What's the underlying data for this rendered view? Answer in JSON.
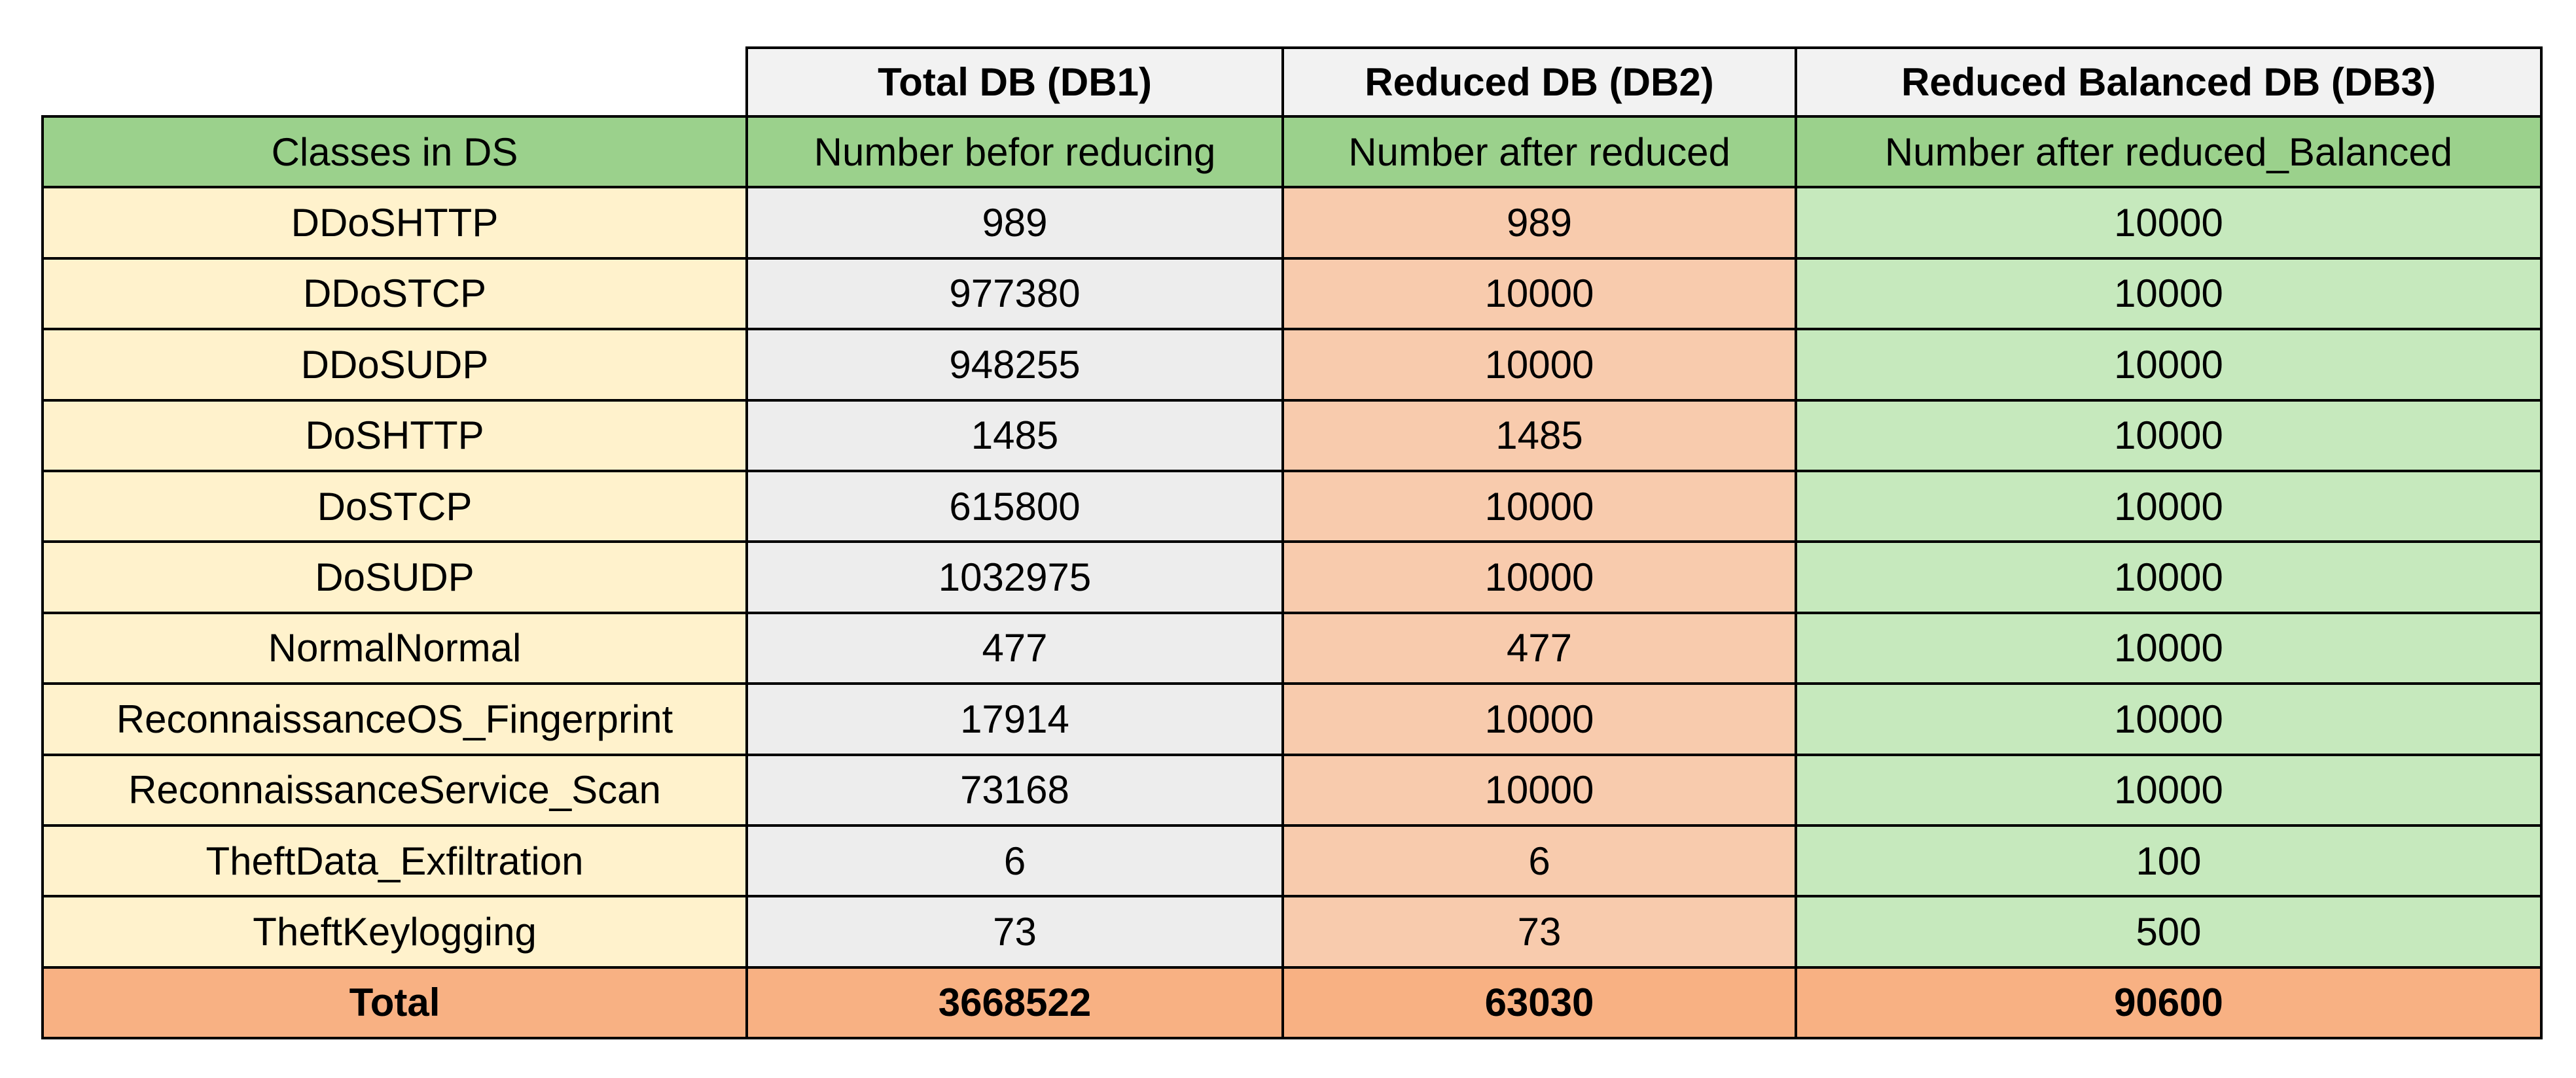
{
  "table": {
    "groups": [
      "Total DB (DB1)",
      "Reduced DB (DB2)",
      "Reduced Balanced DB (DB3)"
    ],
    "header": [
      "Classes in DS",
      "Number befor reducing",
      "Number after reduced",
      "Number after reduced_Balanced"
    ],
    "rows": [
      [
        "DDoSHTTP",
        989,
        989,
        10000
      ],
      [
        "DDoSTCP",
        977380,
        10000,
        10000
      ],
      [
        "DDoSUDP",
        948255,
        10000,
        10000
      ],
      [
        "DoSHTTP",
        1485,
        1485,
        10000
      ],
      [
        "DoSTCP",
        615800,
        10000,
        10000
      ],
      [
        "DoSUDP",
        1032975,
        10000,
        10000
      ],
      [
        "NormalNormal",
        477,
        477,
        10000
      ],
      [
        "ReconnaissanceOS_Fingerprint",
        17914,
        10000,
        10000
      ],
      [
        "ReconnaissanceService_Scan",
        73168,
        10000,
        10000
      ],
      [
        "TheftData_Exfiltration",
        6,
        6,
        100
      ],
      [
        "TheftKeylogging",
        73,
        73,
        500
      ]
    ],
    "total": [
      "Total",
      3668522,
      63030,
      90600
    ]
  }
}
